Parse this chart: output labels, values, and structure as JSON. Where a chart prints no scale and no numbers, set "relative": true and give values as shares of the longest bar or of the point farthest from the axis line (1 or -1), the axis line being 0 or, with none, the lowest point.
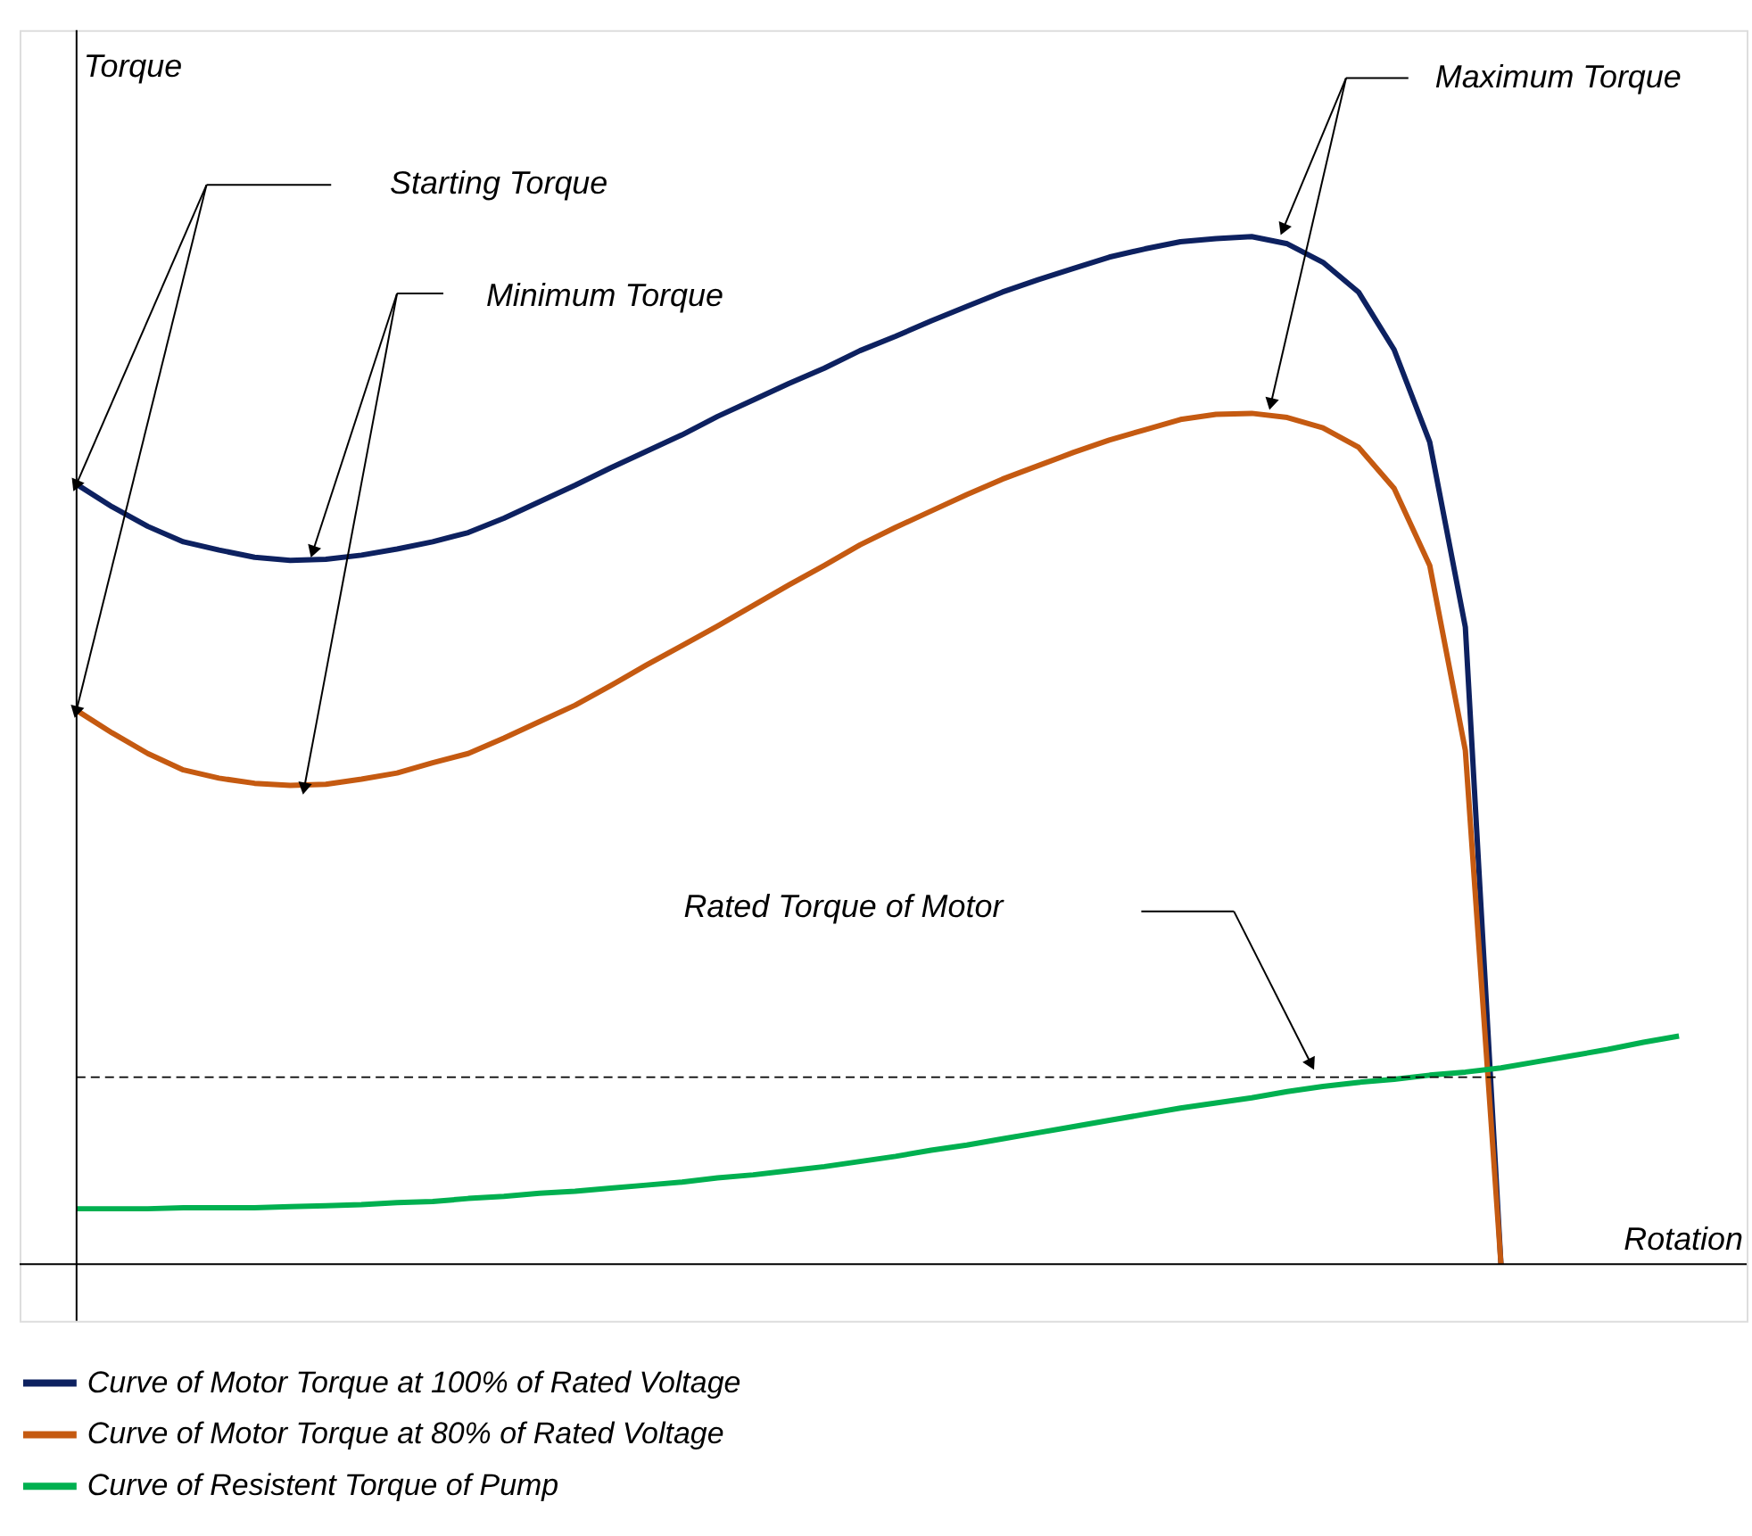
{
  "chart_data": {
    "type": "line",
    "relative": true,
    "xlabel": "Rotation",
    "ylabel": "Torque",
    "legend": "bottom",
    "tick_labels": false,
    "grid": false,
    "marker": "none",
    "line_style": "solid",
    "categories": [
      null,
      null,
      null,
      null,
      null,
      null,
      null,
      null,
      null,
      null,
      null,
      null,
      null,
      null,
      null,
      null,
      null,
      null,
      null,
      null,
      null,
      null,
      null,
      null,
      null,
      null,
      null,
      null,
      null,
      null,
      null,
      null,
      null,
      null,
      null,
      null,
      null,
      null,
      null,
      null,
      null,
      null,
      null,
      null,
      null,
      null
    ],
    "series": [
      {
        "name": "Curve of Motor Torque at 100% of Rated Voltage",
        "color": "#0d2160",
        "values": [
          0.759,
          0.737,
          0.718,
          0.703,
          0.695,
          0.688,
          0.685,
          0.686,
          0.69,
          0.696,
          0.703,
          0.712,
          0.726,
          0.742,
          0.758,
          0.775,
          0.791,
          0.807,
          0.825,
          0.841,
          0.857,
          0.872,
          0.889,
          0.903,
          0.918,
          0.932,
          0.946,
          0.958,
          0.969,
          0.98,
          0.988,
          0.995,
          0.998,
          1.0,
          0.993,
          0.975,
          0.946,
          0.89,
          0.8,
          0.62,
          0,
          null,
          null,
          null,
          null,
          null
        ]
      },
      {
        "name": "Curve of Motor Torque at 80% of Rated Voltage",
        "color": "#c55a11",
        "values": [
          0.539,
          0.517,
          0.497,
          0.481,
          0.473,
          0.468,
          0.466,
          0.467,
          0.472,
          0.478,
          0.488,
          0.497,
          0.512,
          0.528,
          0.544,
          0.563,
          0.583,
          0.602,
          0.621,
          0.641,
          0.661,
          0.68,
          0.7,
          0.717,
          0.733,
          0.749,
          0.764,
          0.777,
          0.79,
          0.802,
          0.812,
          0.822,
          0.827,
          0.828,
          0.824,
          0.814,
          0.795,
          0.755,
          0.68,
          0.5,
          0,
          null,
          null,
          null,
          null,
          null
        ]
      },
      {
        "name": "Curve of Resistent Torque of Pump",
        "color": "#00b050",
        "values": [
          0.054,
          0.054,
          0.054,
          0.055,
          0.055,
          0.055,
          0.056,
          0.057,
          0.058,
          0.06,
          0.061,
          0.064,
          0.066,
          0.069,
          0.071,
          0.074,
          0.077,
          0.08,
          0.084,
          0.087,
          0.091,
          0.095,
          0.1,
          0.105,
          0.111,
          0.116,
          0.122,
          0.128,
          0.134,
          0.14,
          0.146,
          0.152,
          0.157,
          0.162,
          0.168,
          0.173,
          0.177,
          0.18,
          0.184,
          0.187,
          0.191,
          0.197,
          0.203,
          0.209,
          0.216,
          0.222
        ]
      }
    ],
    "ref_lines": [
      {
        "axis": "y",
        "value": 0.182,
        "color": "#000000",
        "line_style": "dashed"
      }
    ],
    "annotations": [
      "Starting Torque",
      "Minimum Torque",
      "Maximum Torque",
      "Rated Torque of Motor"
    ]
  }
}
